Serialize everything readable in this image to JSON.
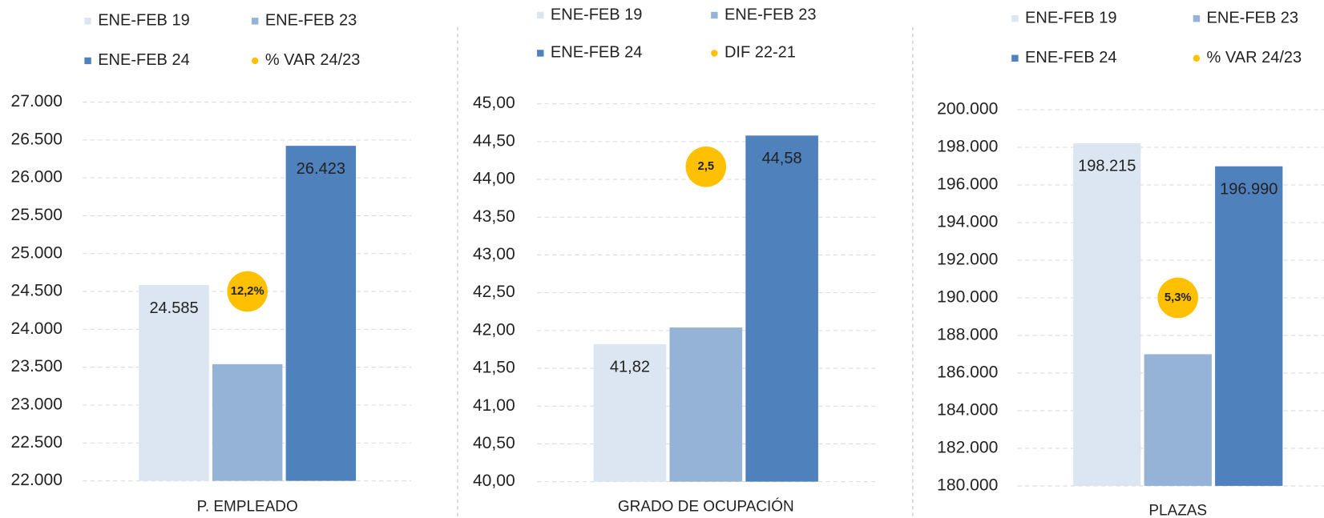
{
  "chart_data": [
    {
      "type": "bar",
      "categories": [
        "P. EMPLEADO"
      ],
      "series": [
        {
          "name": "ENE-FEB 19",
          "color": "#dce6f2",
          "values": [
            24585
          ],
          "value_labels": [
            "24.585"
          ]
        },
        {
          "name": "ENE-FEB 23",
          "color": "#95b3d7",
          "values": [
            23540
          ]
        },
        {
          "name": "ENE-FEB 24",
          "color": "#4f81bd",
          "values": [
            26423
          ],
          "value_labels": [
            "26.423"
          ]
        },
        {
          "name": "% VAR 24/23",
          "color": "#ffc000",
          "values": [
            12.2
          ],
          "value_labels": [
            "12,2%"
          ],
          "axis": "y2"
        }
      ],
      "ylim": [
        22000,
        27000
      ],
      "yticks": [
        {
          "value": 22000,
          "label": "22.000"
        },
        {
          "value": 22500,
          "label": "22.500"
        },
        {
          "value": 23000,
          "label": "23.000"
        },
        {
          "value": 23500,
          "label": "23.500"
        },
        {
          "value": 24000,
          "label": "24.000"
        },
        {
          "value": 24500,
          "label": "24.500"
        },
        {
          "value": 25000,
          "label": "25.000"
        },
        {
          "value": 25500,
          "label": "25.500"
        },
        {
          "value": 26000,
          "label": "26.000"
        },
        {
          "value": 26500,
          "label": "26.500"
        },
        {
          "value": 27000,
          "label": "27.000"
        }
      ],
      "y2lim": [
        0,
        24.4
      ],
      "grid": true
    },
    {
      "type": "bar",
      "categories": [
        "GRADO DE OCUPACIÓN"
      ],
      "series": [
        {
          "name": "ENE-FEB 19",
          "color": "#dce6f2",
          "values": [
            41.82
          ],
          "value_labels": [
            "41,82"
          ]
        },
        {
          "name": "ENE-FEB 23",
          "color": "#95b3d7",
          "values": [
            42.04
          ]
        },
        {
          "name": "ENE-FEB 24",
          "color": "#4f81bd",
          "values": [
            44.58
          ],
          "value_labels": [
            "44,58"
          ]
        },
        {
          "name": "DIF 22-21",
          "color": "#ffc000",
          "values": [
            2.5
          ],
          "value_labels": [
            "2,5"
          ],
          "axis": "y2"
        }
      ],
      "ylim": [
        40,
        45
      ],
      "yticks": [
        {
          "value": 40,
          "label": "40,00"
        },
        {
          "value": 40.5,
          "label": "40,50"
        },
        {
          "value": 41,
          "label": "41,00"
        },
        {
          "value": 41.5,
          "label": "41,50"
        },
        {
          "value": 42,
          "label": "42,00"
        },
        {
          "value": 42.5,
          "label": "42,50"
        },
        {
          "value": 43,
          "label": "43,00"
        },
        {
          "value": 43.5,
          "label": "43,50"
        },
        {
          "value": 44,
          "label": "44,00"
        },
        {
          "value": 44.5,
          "label": "44,50"
        },
        {
          "value": 45,
          "label": "45,00"
        }
      ],
      "y2lim": [
        0,
        3
      ],
      "grid": true
    },
    {
      "type": "bar",
      "categories": [
        "PLAZAS"
      ],
      "series": [
        {
          "name": "ENE-FEB 19",
          "color": "#dce6f2",
          "values": [
            198215
          ],
          "value_labels": [
            "198.215"
          ]
        },
        {
          "name": "ENE-FEB 23",
          "color": "#95b3d7",
          "values": [
            187000
          ]
        },
        {
          "name": "ENE-FEB 24",
          "color": "#4f81bd",
          "values": [
            196990
          ],
          "value_labels": [
            "196.990"
          ]
        },
        {
          "name": "% VAR 24/23",
          "color": "#ffc000",
          "values": [
            5.3
          ],
          "value_labels": [
            "5,3%"
          ],
          "axis": "y2"
        }
      ],
      "ylim": [
        180000,
        200000
      ],
      "yticks": [
        {
          "value": 180000,
          "label": "180.000"
        },
        {
          "value": 182000,
          "label": "182.000"
        },
        {
          "value": 184000,
          "label": "184.000"
        },
        {
          "value": 186000,
          "label": "186.000"
        },
        {
          "value": 188000,
          "label": "188.000"
        },
        {
          "value": 190000,
          "label": "190.000"
        },
        {
          "value": 192000,
          "label": "192.000"
        },
        {
          "value": 194000,
          "label": "194.000"
        },
        {
          "value": 196000,
          "label": "196.000"
        },
        {
          "value": 198000,
          "label": "198.000"
        },
        {
          "value": 200000,
          "label": "200.000"
        }
      ],
      "y2lim": [
        0,
        10.6
      ],
      "grid": true
    }
  ]
}
